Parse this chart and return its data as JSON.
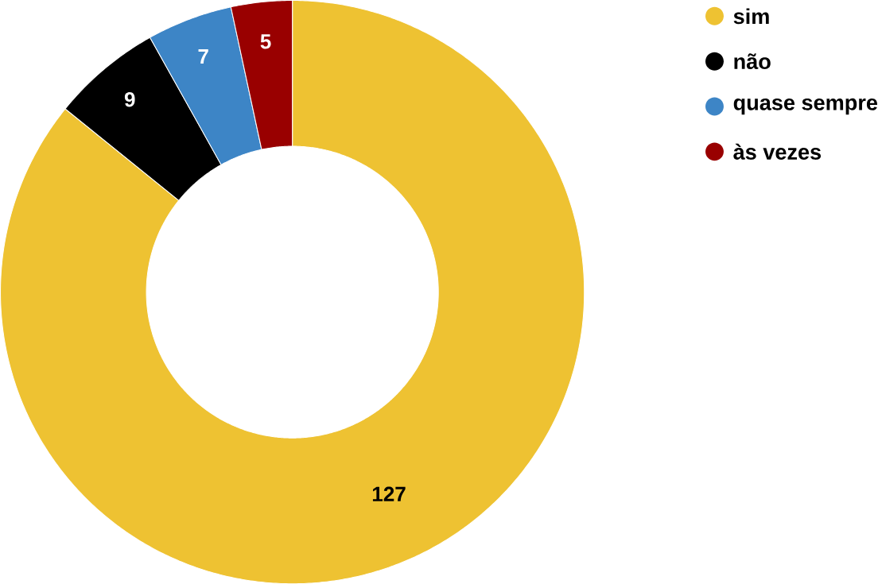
{
  "chart_data": {
    "type": "donut",
    "categories": [
      "sim",
      "não",
      "quase sempre",
      "às vezes"
    ],
    "values": [
      127,
      9,
      7,
      5
    ],
    "colors": [
      "#eec232",
      "#000000",
      "#3d85c6",
      "#990000"
    ],
    "data_labels": true,
    "legend": "top right"
  }
}
